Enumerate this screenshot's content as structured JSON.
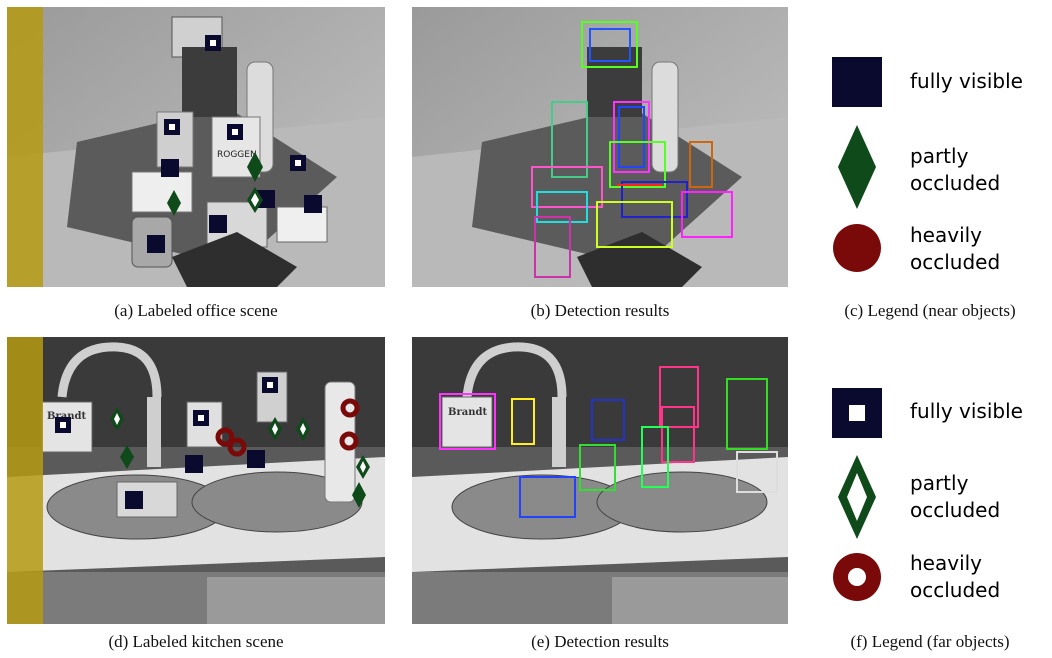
{
  "captions": {
    "a": "(a) Labeled office scene",
    "b": "(b) Detection results",
    "c": "(c) Legend (near objects)",
    "d": "(d) Labeled kitchen scene",
    "e": "(e) Detection results",
    "f": "(f) Legend (far objects)"
  },
  "legend_near": {
    "fully": "fully visible",
    "partly": [
      "partly",
      "occluded"
    ],
    "heavily": [
      "heavily",
      "occluded"
    ]
  },
  "legend_far": {
    "fully": "fully visible",
    "partly": [
      "partly",
      "occluded"
    ],
    "heavily": [
      "heavily",
      "occluded"
    ]
  },
  "scene_text": {
    "office_product": "ROGGEN",
    "kitchen_brand_left": "Brandt",
    "kitchen_brand_right": "Brandt"
  },
  "colors": {
    "fully_visible": "#0a0a2e",
    "partly_occluded": "#0f4a1a",
    "heavily_occluded": "#7a0a0a",
    "yellow_band": "#b59a12"
  }
}
